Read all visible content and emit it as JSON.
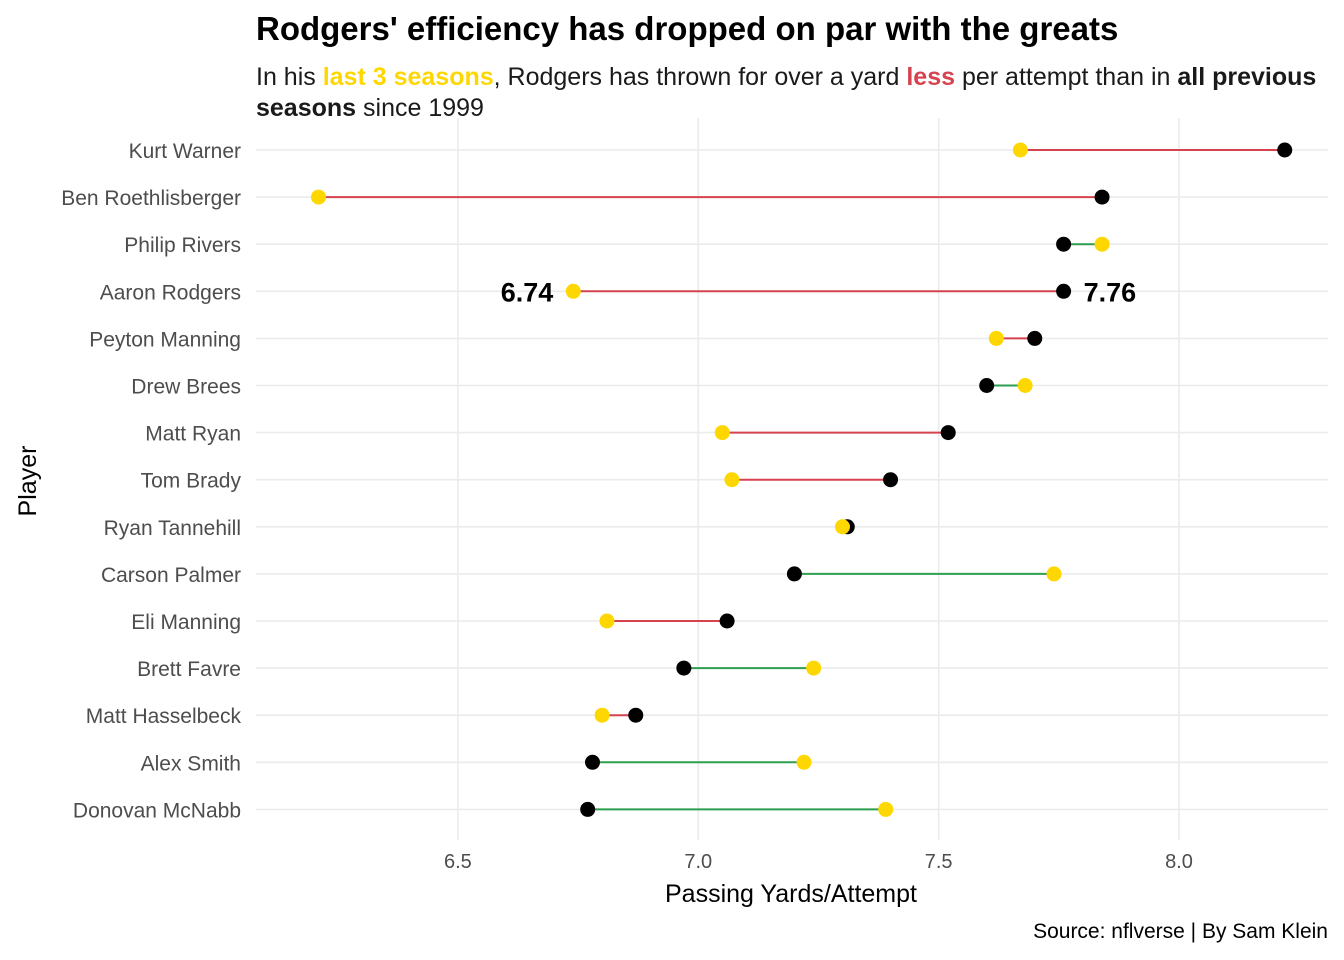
{
  "title": "Rodgers' efficiency has dropped on par with the greats",
  "subtitle": {
    "p1": "In his ",
    "p2": "last 3 seasons",
    "p3": ", Rodgers has thrown for over a yard ",
    "p4": "less",
    "p5": " per attempt than in ",
    "p6": "all previous seasons",
    "p7": " since 1999"
  },
  "caption": "Source: nflverse | By Sam Klein",
  "colors": {
    "last3": "#FFD700",
    "previous": "#000000",
    "decline": "#D7424F",
    "improve": "#2E9E4F",
    "grid": "#EBEBEB",
    "axis_text": "#4D4D4D"
  },
  "chart_data": {
    "type": "dumbbell",
    "xlabel": "Passing Yards/Attempt",
    "ylabel": "Player",
    "xlim": [
      6.08,
      8.31
    ],
    "xticks": [
      6.5,
      7.0,
      7.5,
      8.0
    ],
    "xtick_labels": [
      "6.5",
      "7.0",
      "7.5",
      "8.0"
    ],
    "grid": true,
    "categories": [
      "Kurt Warner",
      "Ben Roethlisberger",
      "Philip Rivers",
      "Aaron Rodgers",
      "Peyton Manning",
      "Drew Brees",
      "Matt Ryan",
      "Tom Brady",
      "Ryan Tannehill",
      "Carson Palmer",
      "Eli Manning",
      "Brett Favre",
      "Matt Hasselbeck",
      "Alex Smith",
      "Donovan McNabb"
    ],
    "series": [
      {
        "key": "previous",
        "values": [
          8.22,
          7.84,
          7.76,
          7.76,
          7.7,
          7.6,
          7.52,
          7.4,
          7.31,
          7.2,
          7.06,
          6.97,
          6.87,
          6.78,
          6.77
        ]
      },
      {
        "key": "last3",
        "values": [
          7.67,
          6.21,
          7.84,
          6.74,
          7.62,
          7.68,
          7.05,
          7.07,
          7.3,
          7.74,
          6.81,
          7.24,
          6.8,
          7.22,
          7.39
        ]
      }
    ],
    "annotations": [
      {
        "player": "Aaron Rodgers",
        "value": 6.74,
        "text": "6.74",
        "side": "left"
      },
      {
        "player": "Aaron Rodgers",
        "value": 7.76,
        "text": "7.76",
        "side": "right"
      }
    ]
  }
}
